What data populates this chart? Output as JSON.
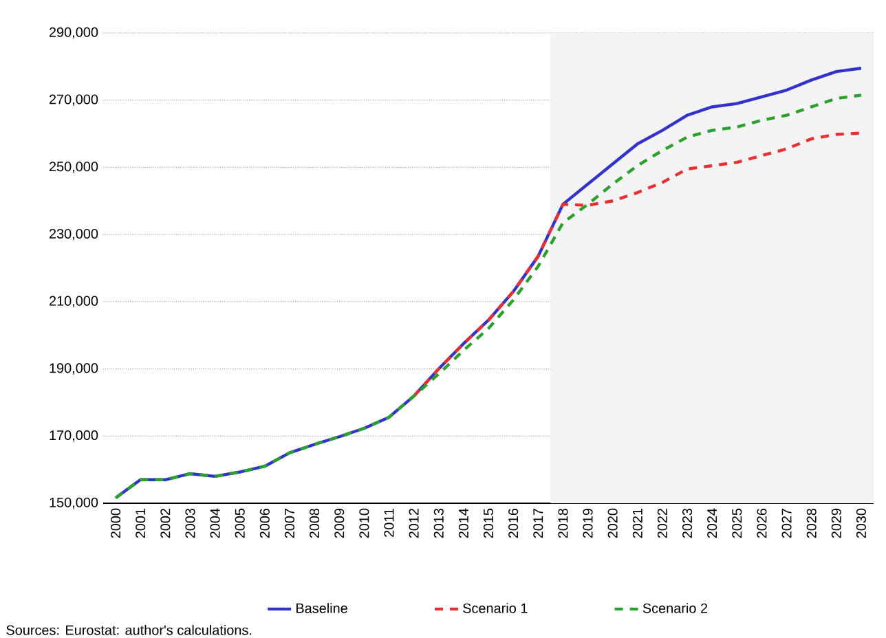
{
  "chart_data": {
    "type": "line",
    "categories": [
      "2000",
      "2001",
      "2002",
      "2003",
      "2004",
      "2005",
      "2006",
      "2007",
      "2008",
      "2009",
      "2010",
      "2011",
      "2012",
      "2013",
      "2014",
      "2015",
      "2016",
      "2017",
      "2018",
      "2019",
      "2020",
      "2021",
      "2022",
      "2023",
      "2024",
      "2025",
      "2026",
      "2027",
      "2028",
      "2029",
      "2030"
    ],
    "series": [
      {
        "name": "Baseline",
        "color": "#3333cc",
        "line_style": "solid",
        "values": [
          151600,
          157000,
          157000,
          158800,
          158000,
          159300,
          161000,
          165000,
          167500,
          169800,
          172300,
          175600,
          181900,
          190000,
          197500,
          204500,
          213000,
          223500,
          239000,
          245000,
          251000,
          257000,
          261000,
          265500,
          268000,
          269000,
          271000,
          273000,
          276000,
          278500,
          279500
        ]
      },
      {
        "name": "Scenario 1",
        "color": "#e83030",
        "line_style": "dashed",
        "values": [
          null,
          null,
          null,
          null,
          null,
          null,
          null,
          null,
          null,
          null,
          null,
          null,
          181900,
          190000,
          197500,
          204500,
          213000,
          223500,
          239000,
          238700,
          240000,
          242500,
          245500,
          249500,
          250500,
          251500,
          253500,
          255500,
          258500,
          259800,
          260200
        ]
      },
      {
        "name": "Scenario 2",
        "color": "#2ca02c",
        "line_style": "dashed",
        "values": [
          151600,
          157000,
          157000,
          158800,
          158000,
          159300,
          161000,
          165000,
          167500,
          169800,
          172300,
          175600,
          181900,
          188500,
          195500,
          202000,
          210500,
          220500,
          233500,
          239000,
          245000,
          250500,
          255000,
          259000,
          261000,
          262000,
          264000,
          265500,
          268000,
          270500,
          271500
        ]
      }
    ],
    "ylim": [
      150000,
      290000
    ],
    "yticks": [
      {
        "value": 150000,
        "label": "150,000"
      },
      {
        "value": 170000,
        "label": "170,000"
      },
      {
        "value": 190000,
        "label": "190,000"
      },
      {
        "value": 210000,
        "label": "210,000"
      },
      {
        "value": 230000,
        "label": "230,000"
      },
      {
        "value": 250000,
        "label": "250,000"
      },
      {
        "value": 270000,
        "label": "270,000"
      },
      {
        "value": 290000,
        "label": "290,000"
      }
    ],
    "grid": "y",
    "legend": "bottom",
    "marker": "none",
    "bands": [
      {
        "axis": "x",
        "from": "2018",
        "to": "2030",
        "color": "#f4f4f4"
      }
    ],
    "annotations": [
      "Sources: Eurostat: author's calculations."
    ]
  }
}
